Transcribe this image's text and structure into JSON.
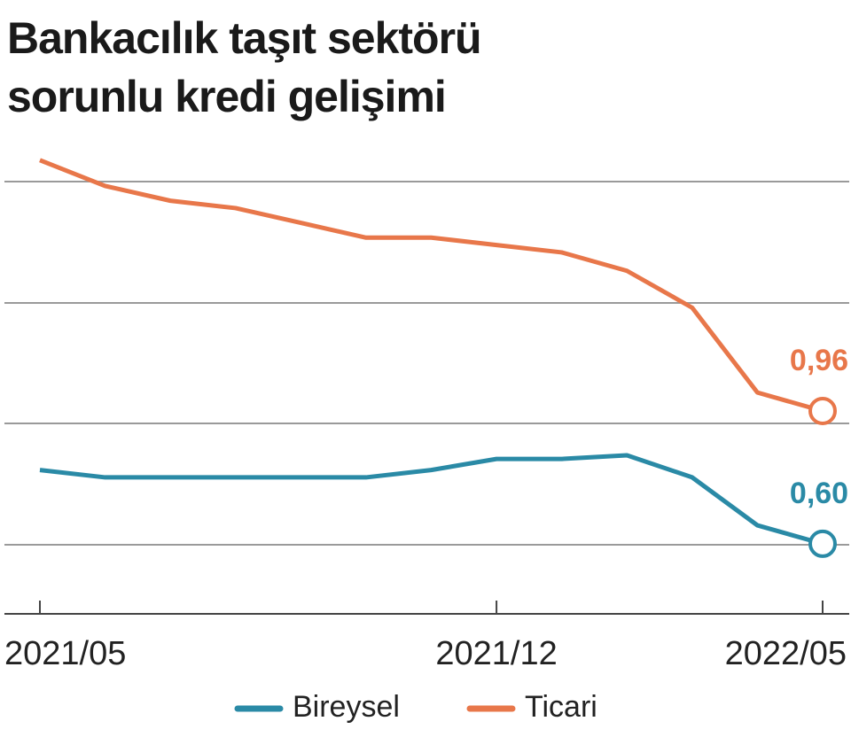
{
  "chart_data": {
    "type": "line",
    "title": "Bankacılık taşıt sektörü sorunlu kredi gelişimi",
    "categories": [
      "2021/05",
      null,
      null,
      null,
      null,
      null,
      null,
      "2021/12",
      null,
      null,
      null,
      null,
      "2022/05"
    ],
    "series": [
      {
        "name": "Bireysel",
        "color": "#2a8aa6",
        "values": [
          0.8,
          0.78,
          0.78,
          0.78,
          0.78,
          0.78,
          0.8,
          0.83,
          0.83,
          0.84,
          0.78,
          0.65,
          0.6
        ],
        "value_labels": [
          null,
          null,
          null,
          null,
          null,
          null,
          null,
          null,
          null,
          null,
          null,
          null,
          "0,60"
        ]
      },
      {
        "name": "Ticari",
        "color": "#e8774a",
        "values": [
          1.64,
          1.57,
          1.53,
          1.51,
          1.47,
          1.43,
          1.43,
          1.41,
          1.39,
          1.34,
          1.24,
          1.01,
          0.96
        ],
        "value_labels": [
          null,
          null,
          null,
          null,
          null,
          null,
          null,
          null,
          null,
          null,
          null,
          null,
          "0,96"
        ]
      }
    ],
    "ylim": [
      0.41,
      1.69
    ]
  }
}
